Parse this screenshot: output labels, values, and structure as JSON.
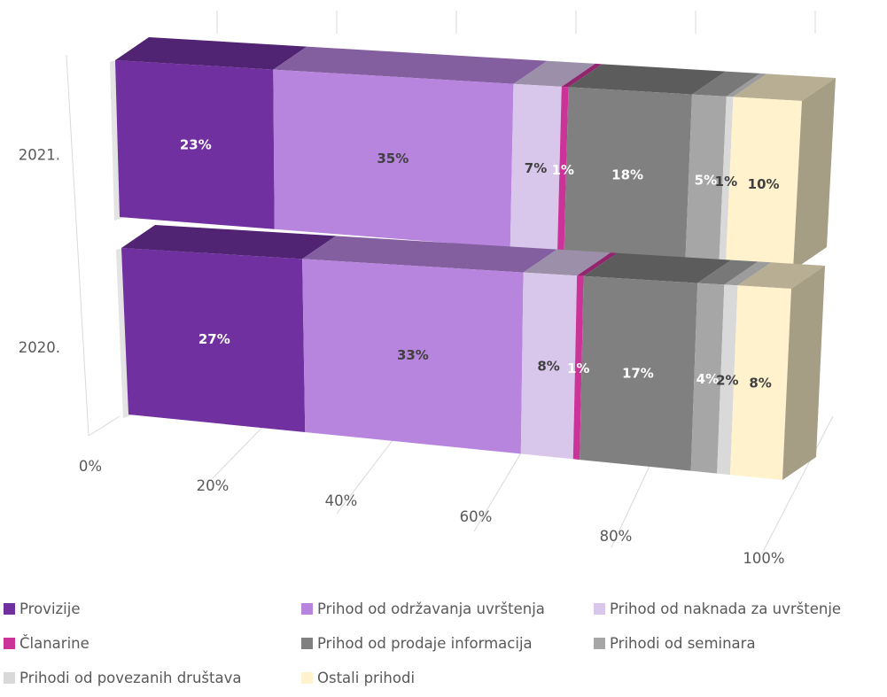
{
  "chart_data": {
    "type": "bar",
    "orientation": "horizontal",
    "stacked": "100%",
    "style": "3d",
    "categories": [
      "2021.",
      "2020."
    ],
    "series": [
      {
        "name": "Provizije",
        "color": "#7030a0",
        "values": [
          23,
          27
        ],
        "labels": [
          "23%",
          "27%"
        ],
        "label_color": "#ffffff"
      },
      {
        "name": "Prihod od održavanja uvrštenja",
        "color": "#b784de",
        "values": [
          35,
          33
        ],
        "labels": [
          "35%",
          "33%"
        ],
        "label_color": "#404040"
      },
      {
        "name": "Prihod od naknada za uvrštenje",
        "color": "#d9c7eb",
        "values": [
          7,
          8
        ],
        "labels": [
          "7%",
          "8%"
        ],
        "label_color": "#404040"
      },
      {
        "name": "Članarine",
        "color": "#cc3399",
        "values": [
          1,
          1
        ],
        "labels": [
          "1%",
          "1%"
        ],
        "label_color": "#ffffff"
      },
      {
        "name": "Prihod od prodaje informacija",
        "color": "#808080",
        "values": [
          18,
          17
        ],
        "labels": [
          "18%",
          "17%"
        ],
        "label_color": "#ffffff"
      },
      {
        "name": "Prihodi od seminara",
        "color": "#a6a6a6",
        "values": [
          5,
          4
        ],
        "labels": [
          "5%",
          "4%"
        ],
        "label_color": "#ffffff"
      },
      {
        "name": "Prihodi od povezanih društava",
        "color": "#d9d9d9",
        "values": [
          1,
          2
        ],
        "labels": [
          "1%",
          "2%"
        ],
        "label_color": "#404040"
      },
      {
        "name": "Ostali prihodi",
        "color": "#fff2cc",
        "values": [
          10,
          8
        ],
        "labels": [
          "10%",
          "8%"
        ],
        "label_color": "#404040"
      }
    ],
    "x_ticks": [
      "0%",
      "20%",
      "40%",
      "60%",
      "80%",
      "100%"
    ],
    "xlim": [
      0,
      100
    ],
    "grid": true,
    "legend_position": "bottom"
  }
}
